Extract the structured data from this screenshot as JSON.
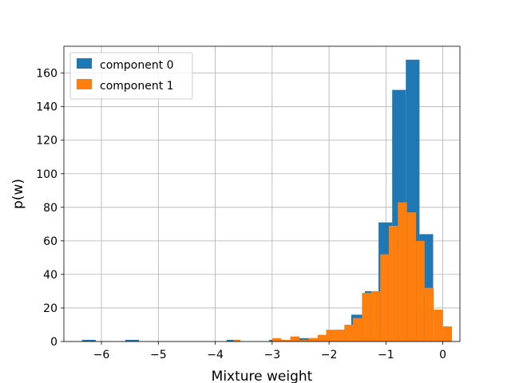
{
  "chart_data": {
    "type": "bar",
    "xlabel": "Mixture weight",
    "ylabel": "p(w)",
    "xlim": [
      -6.66,
      0.3
    ],
    "ylim": [
      0,
      176
    ],
    "xticks": [
      -6,
      -5,
      -4,
      -3,
      -2,
      -1,
      0
    ],
    "xtick_labels": [
      "−6",
      "−5",
      "−4",
      "−3",
      "−2",
      "−1",
      "0"
    ],
    "yticks": [
      0,
      20,
      40,
      60,
      80,
      100,
      120,
      140,
      160
    ],
    "grid": true,
    "legend_position": "upper-left",
    "series": [
      {
        "name": "component 0",
        "color": "#1f77b4",
        "bins": [
          {
            "x0": -6.34,
            "x1": -6.1,
            "value": 1
          },
          {
            "x0": -5.58,
            "x1": -5.34,
            "value": 1
          },
          {
            "x0": -3.8,
            "x1": -3.56,
            "value": 1
          },
          {
            "x0": -3.05,
            "x1": -2.81,
            "value": 1
          },
          {
            "x0": -2.57,
            "x1": -2.33,
            "value": 2
          },
          {
            "x0": -2.33,
            "x1": -2.09,
            "value": 2
          },
          {
            "x0": -1.85,
            "x1": -1.61,
            "value": 7
          },
          {
            "x0": -1.61,
            "x1": -1.37,
            "value": 16
          },
          {
            "x0": -1.37,
            "x1": -1.13,
            "value": 30
          },
          {
            "x0": -1.13,
            "x1": -0.89,
            "value": 71
          },
          {
            "x0": -0.89,
            "x1": -0.65,
            "value": 150
          },
          {
            "x0": -0.65,
            "x1": -0.41,
            "value": 168
          },
          {
            "x0": -0.41,
            "x1": -0.17,
            "value": 64
          }
        ]
      },
      {
        "name": "component 1",
        "color": "#ff7f0e",
        "bins": [
          {
            "x0": -3.68,
            "x1": -3.56,
            "value": 1
          },
          {
            "x0": -3.0,
            "x1": -2.84,
            "value": 2
          },
          {
            "x0": -2.84,
            "x1": -2.68,
            "value": 1
          },
          {
            "x0": -2.68,
            "x1": -2.52,
            "value": 3
          },
          {
            "x0": -2.52,
            "x1": -2.36,
            "value": 1
          },
          {
            "x0": -2.36,
            "x1": -2.2,
            "value": 2
          },
          {
            "x0": -2.2,
            "x1": -2.05,
            "value": 4
          },
          {
            "x0": -2.05,
            "x1": -1.89,
            "value": 7
          },
          {
            "x0": -1.89,
            "x1": -1.73,
            "value": 7
          },
          {
            "x0": -1.73,
            "x1": -1.58,
            "value": 10
          },
          {
            "x0": -1.58,
            "x1": -1.42,
            "value": 14
          },
          {
            "x0": -1.42,
            "x1": -1.26,
            "value": 29
          },
          {
            "x0": -1.26,
            "x1": -1.1,
            "value": 30
          },
          {
            "x0": -1.1,
            "x1": -0.95,
            "value": 52
          },
          {
            "x0": -0.95,
            "x1": -0.79,
            "value": 69
          },
          {
            "x0": -0.79,
            "x1": -0.63,
            "value": 83
          },
          {
            "x0": -0.63,
            "x1": -0.47,
            "value": 77
          },
          {
            "x0": -0.47,
            "x1": -0.32,
            "value": 60
          },
          {
            "x0": -0.32,
            "x1": -0.16,
            "value": 32
          },
          {
            "x0": -0.16,
            "x1": 0.0,
            "value": 19
          },
          {
            "x0": 0.0,
            "x1": 0.16,
            "value": 9
          }
        ]
      }
    ]
  }
}
